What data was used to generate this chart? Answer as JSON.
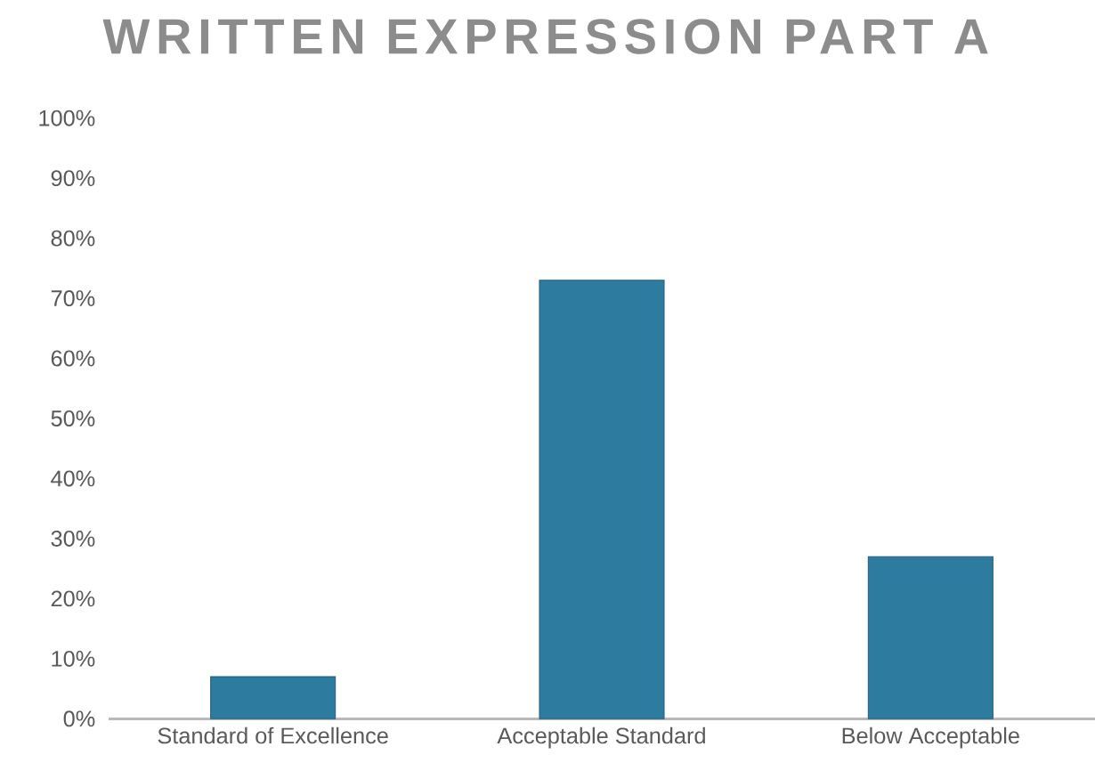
{
  "chart_data": {
    "type": "bar",
    "title": "WRITTEN EXPRESSION PART A",
    "categories": [
      "Standard of Excellence",
      "Acceptable Standard",
      "Below Acceptable"
    ],
    "values": [
      7,
      73,
      27
    ],
    "color": "#2e7ba0",
    "ylim": [
      0,
      100
    ],
    "yticks": [
      {
        "value": 0,
        "label": "0%"
      },
      {
        "value": 10,
        "label": "10%"
      },
      {
        "value": 20,
        "label": "20%"
      },
      {
        "value": 30,
        "label": "30%"
      },
      {
        "value": 40,
        "label": "40%"
      },
      {
        "value": 50,
        "label": "50%"
      },
      {
        "value": 60,
        "label": "60%"
      },
      {
        "value": 70,
        "label": "70%"
      },
      {
        "value": 80,
        "label": "80%"
      },
      {
        "value": 90,
        "label": "90%"
      },
      {
        "value": 100,
        "label": "100%"
      }
    ],
    "grid": false
  }
}
